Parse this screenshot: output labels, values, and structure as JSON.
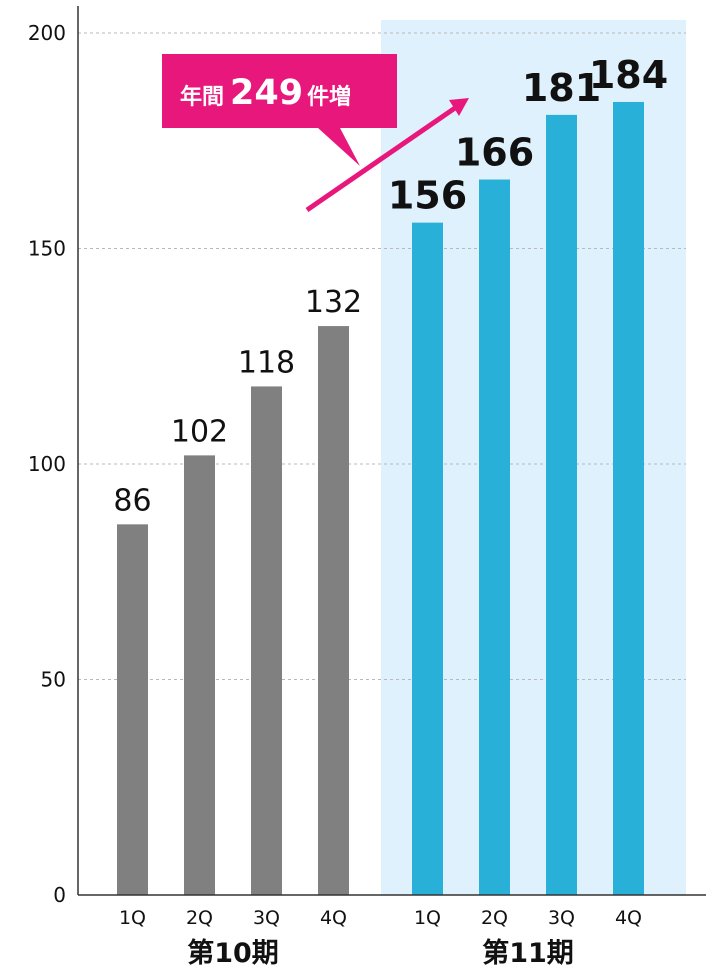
{
  "chart_data": {
    "type": "bar",
    "ylim": [
      0,
      200
    ],
    "y_ticks": [
      0,
      50,
      100,
      150,
      200
    ],
    "grid": true,
    "categories": [
      "1Q",
      "2Q",
      "3Q",
      "4Q",
      "1Q",
      "2Q",
      "3Q",
      "4Q"
    ],
    "groups": [
      {
        "label": "第10期",
        "categories": [
          "1Q",
          "2Q",
          "3Q",
          "4Q"
        ],
        "values": [
          86,
          102,
          118,
          132
        ],
        "color": "#808080",
        "highlight": false
      },
      {
        "label": "第11期",
        "categories": [
          "1Q",
          "2Q",
          "3Q",
          "4Q"
        ],
        "values": [
          156,
          166,
          181,
          184
        ],
        "color": "#29b0d9",
        "highlight": true
      }
    ],
    "highlight_color": "#dff1fc",
    "annotation": {
      "prefix": "年間",
      "value": "249",
      "suffix": "件増",
      "color": "#e8177c"
    }
  }
}
